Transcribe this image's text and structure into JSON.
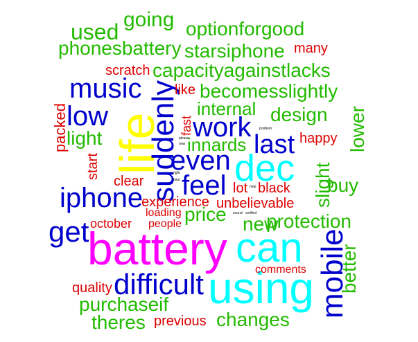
{
  "colors": {
    "magenta": "#ff00ff",
    "cyan": "#00ffff",
    "yellow": "#ffff00",
    "blue": "#0000cc",
    "green": "#22bb00",
    "red": "#dd0000",
    "black": "#000000"
  },
  "words": [
    {
      "text": "battery",
      "color": "magenta"
    },
    {
      "text": "using",
      "color": "cyan"
    },
    {
      "text": "can",
      "color": "cyan"
    },
    {
      "text": "dec",
      "color": "cyan"
    },
    {
      "text": "life",
      "color": "yellow"
    },
    {
      "text": "suddenly",
      "color": "blue"
    },
    {
      "text": "mobile",
      "color": "blue"
    },
    {
      "text": "difficult",
      "color": "blue"
    },
    {
      "text": "iphone",
      "color": "blue"
    },
    {
      "text": "get",
      "color": "blue"
    },
    {
      "text": "music",
      "color": "blue"
    },
    {
      "text": "work",
      "color": "blue"
    },
    {
      "text": "even",
      "color": "blue"
    },
    {
      "text": "feel",
      "color": "blue"
    },
    {
      "text": "low",
      "color": "blue"
    },
    {
      "text": "last",
      "color": "blue"
    },
    {
      "text": "used",
      "color": "green"
    },
    {
      "text": "going",
      "color": "green"
    },
    {
      "text": "optionforgood",
      "color": "green"
    },
    {
      "text": "phonesbattery",
      "color": "green"
    },
    {
      "text": "starsiphone",
      "color": "green"
    },
    {
      "text": "capacityagainstlacks",
      "color": "green"
    },
    {
      "text": "becomesslightly",
      "color": "green"
    },
    {
      "text": "internal",
      "color": "green"
    },
    {
      "text": "design",
      "color": "green"
    },
    {
      "text": "light",
      "color": "green"
    },
    {
      "text": "innards",
      "color": "green"
    },
    {
      "text": "lower",
      "color": "green"
    },
    {
      "text": "slight",
      "color": "green"
    },
    {
      "text": "buy",
      "color": "green"
    },
    {
      "text": "price",
      "color": "green"
    },
    {
      "text": "protection",
      "color": "green"
    },
    {
      "text": "new",
      "color": "green"
    },
    {
      "text": "better",
      "color": "green"
    },
    {
      "text": "purchaseif",
      "color": "green"
    },
    {
      "text": "theres",
      "color": "green"
    },
    {
      "text": "changes",
      "color": "green"
    },
    {
      "text": "many",
      "color": "red"
    },
    {
      "text": "scratch",
      "color": "red"
    },
    {
      "text": "like",
      "color": "red"
    },
    {
      "text": "packed",
      "color": "red"
    },
    {
      "text": "fast",
      "color": "red"
    },
    {
      "text": "happy",
      "color": "red"
    },
    {
      "text": "start",
      "color": "red"
    },
    {
      "text": "clear",
      "color": "red"
    },
    {
      "text": "lot",
      "color": "red"
    },
    {
      "text": "black",
      "color": "red"
    },
    {
      "text": "experience",
      "color": "red"
    },
    {
      "text": "unbelievable",
      "color": "red"
    },
    {
      "text": "loading",
      "color": "red"
    },
    {
      "text": "october",
      "color": "red"
    },
    {
      "text": "people",
      "color": "red"
    },
    {
      "text": "comments",
      "color": "red"
    },
    {
      "text": "quality",
      "color": "red"
    },
    {
      "text": "previous",
      "color": "red"
    },
    {
      "text": "problem",
      "color": "black"
    },
    {
      "text": "please",
      "color": "black"
    },
    {
      "text": "now",
      "color": "black"
    },
    {
      "text": "right",
      "color": "black"
    },
    {
      "text": "total",
      "color": "black"
    },
    {
      "text": "help",
      "color": "black"
    },
    {
      "text": "sound",
      "color": "black"
    },
    {
      "text": "verified",
      "color": "black"
    }
  ]
}
